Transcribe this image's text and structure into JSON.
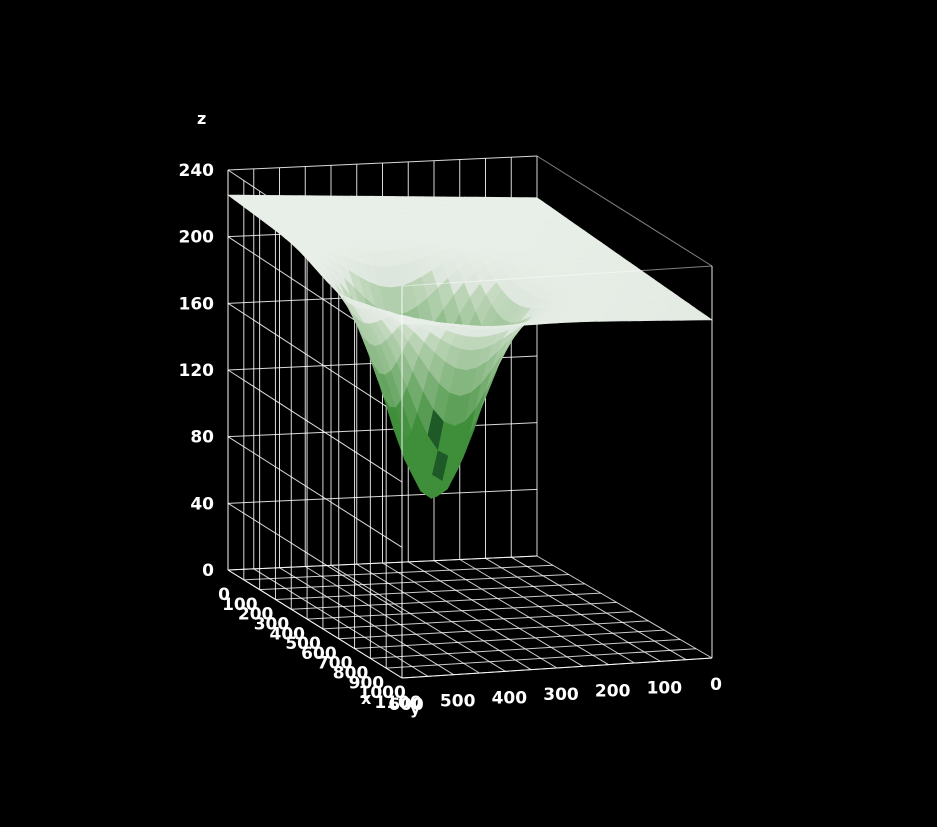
{
  "chart_data": {
    "type": "surface3d",
    "title": "",
    "xlabel": "x",
    "ylabel": "y",
    "zlabel": "z",
    "x_ticks": [
      "0",
      "100",
      "200",
      "300",
      "400",
      "500",
      "600",
      "700",
      "800",
      "900",
      "1000",
      "1100"
    ],
    "y_ticks": [
      "0",
      "100",
      "200",
      "300",
      "400",
      "500",
      "600"
    ],
    "z_ticks": [
      "0",
      "40",
      "80",
      "120",
      "160",
      "200",
      "240"
    ],
    "xlim": [
      0,
      1100
    ],
    "ylim": [
      0,
      600
    ],
    "zlim": [
      0,
      240
    ],
    "grid": true,
    "surface": {
      "plateau_z": 215,
      "min_z": 80,
      "min_at": {
        "x": 700,
        "y": 420
      }
    },
    "colors": {
      "background": "#000000",
      "grid": "#ffffff",
      "surface": "#e8efe8",
      "texture_green": "#3f8f3a",
      "texture_dark": "#1e5a28"
    }
  }
}
